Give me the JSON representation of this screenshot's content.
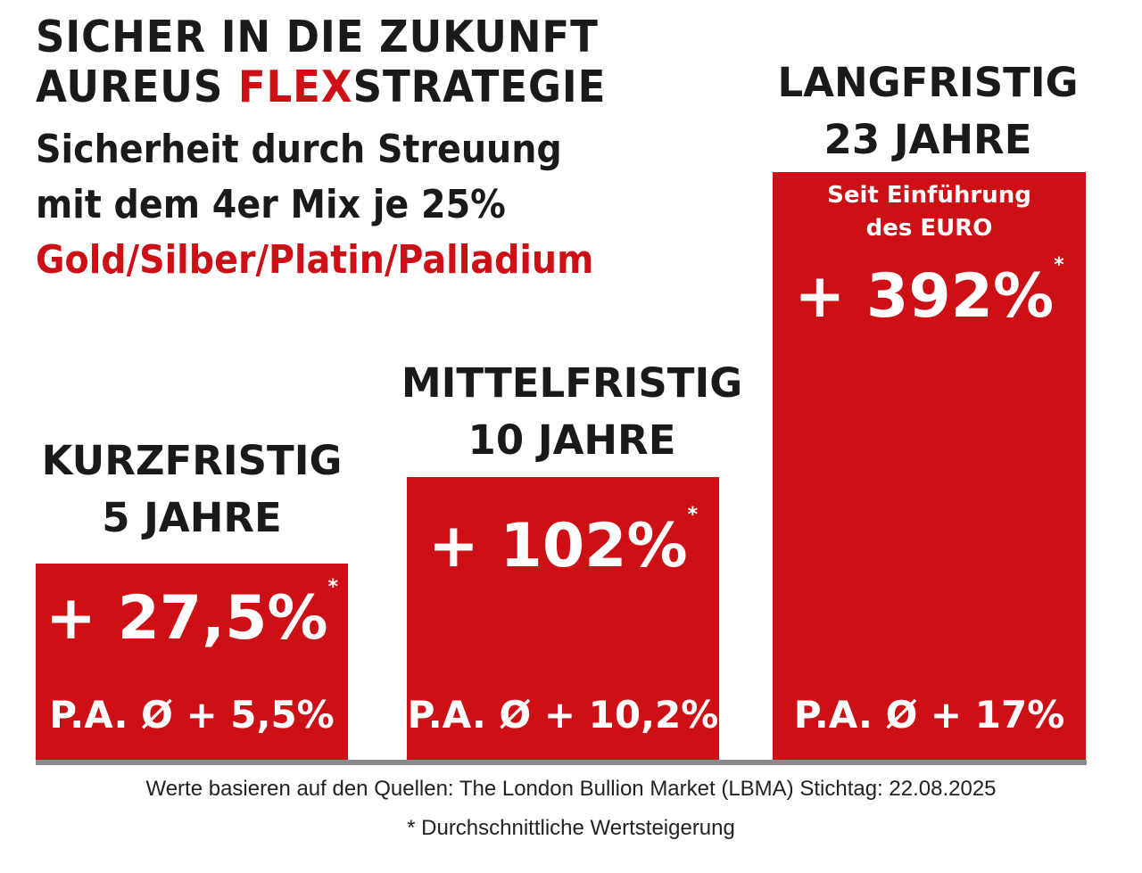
{
  "header": {
    "line1": "SICHER IN DIE ZUKUNFT",
    "line2_a": "AUREUS ",
    "line2_b": "FLEX",
    "line2_c": "STRATEGIE",
    "sub1": "Sicherheit durch Streuung",
    "sub2": "mit dem 4er Mix je 25%",
    "sub3": "Gold/Silber/Platin/Palladium"
  },
  "colors": {
    "accent": "#cc1016",
    "baseline": "#8a8a8a"
  },
  "chart_data": {
    "type": "bar",
    "categories": [
      "KURZFRISTIG 5 JAHRE",
      "MITTELFRISTIG 10 JAHRE",
      "LANGFRISTIG 23 JAHRE"
    ],
    "bars": [
      {
        "title": "KURZFRISTIG",
        "period": "5 JAHRE",
        "value": 27.5,
        "value_label": "+ 27,5%",
        "star": "*",
        "pa_label": "P.A. Ø + 5,5%",
        "pa_value": 5.5
      },
      {
        "title": "MITTELFRISTIG",
        "period": "10 JAHRE",
        "value": 102,
        "value_label": "+ 102%",
        "star": "*",
        "pa_label": "P.A. Ø + 10,2%",
        "pa_value": 10.2
      },
      {
        "title": "LANGFRISTIG",
        "period": "23 JAHRE",
        "note1": "Seit Einführung",
        "note2": "des EURO",
        "value": 392,
        "value_label": "+ 392%",
        "star": "*",
        "pa_label": "P.A. Ø + 17%",
        "pa_value": 17
      }
    ]
  },
  "footer": {
    "source": "Werte basieren auf den Quellen: The London Bullion Market (LBMA) Stichtag: 22.08.2025",
    "footnote": "* Durchschnittliche Wertsteigerung"
  }
}
